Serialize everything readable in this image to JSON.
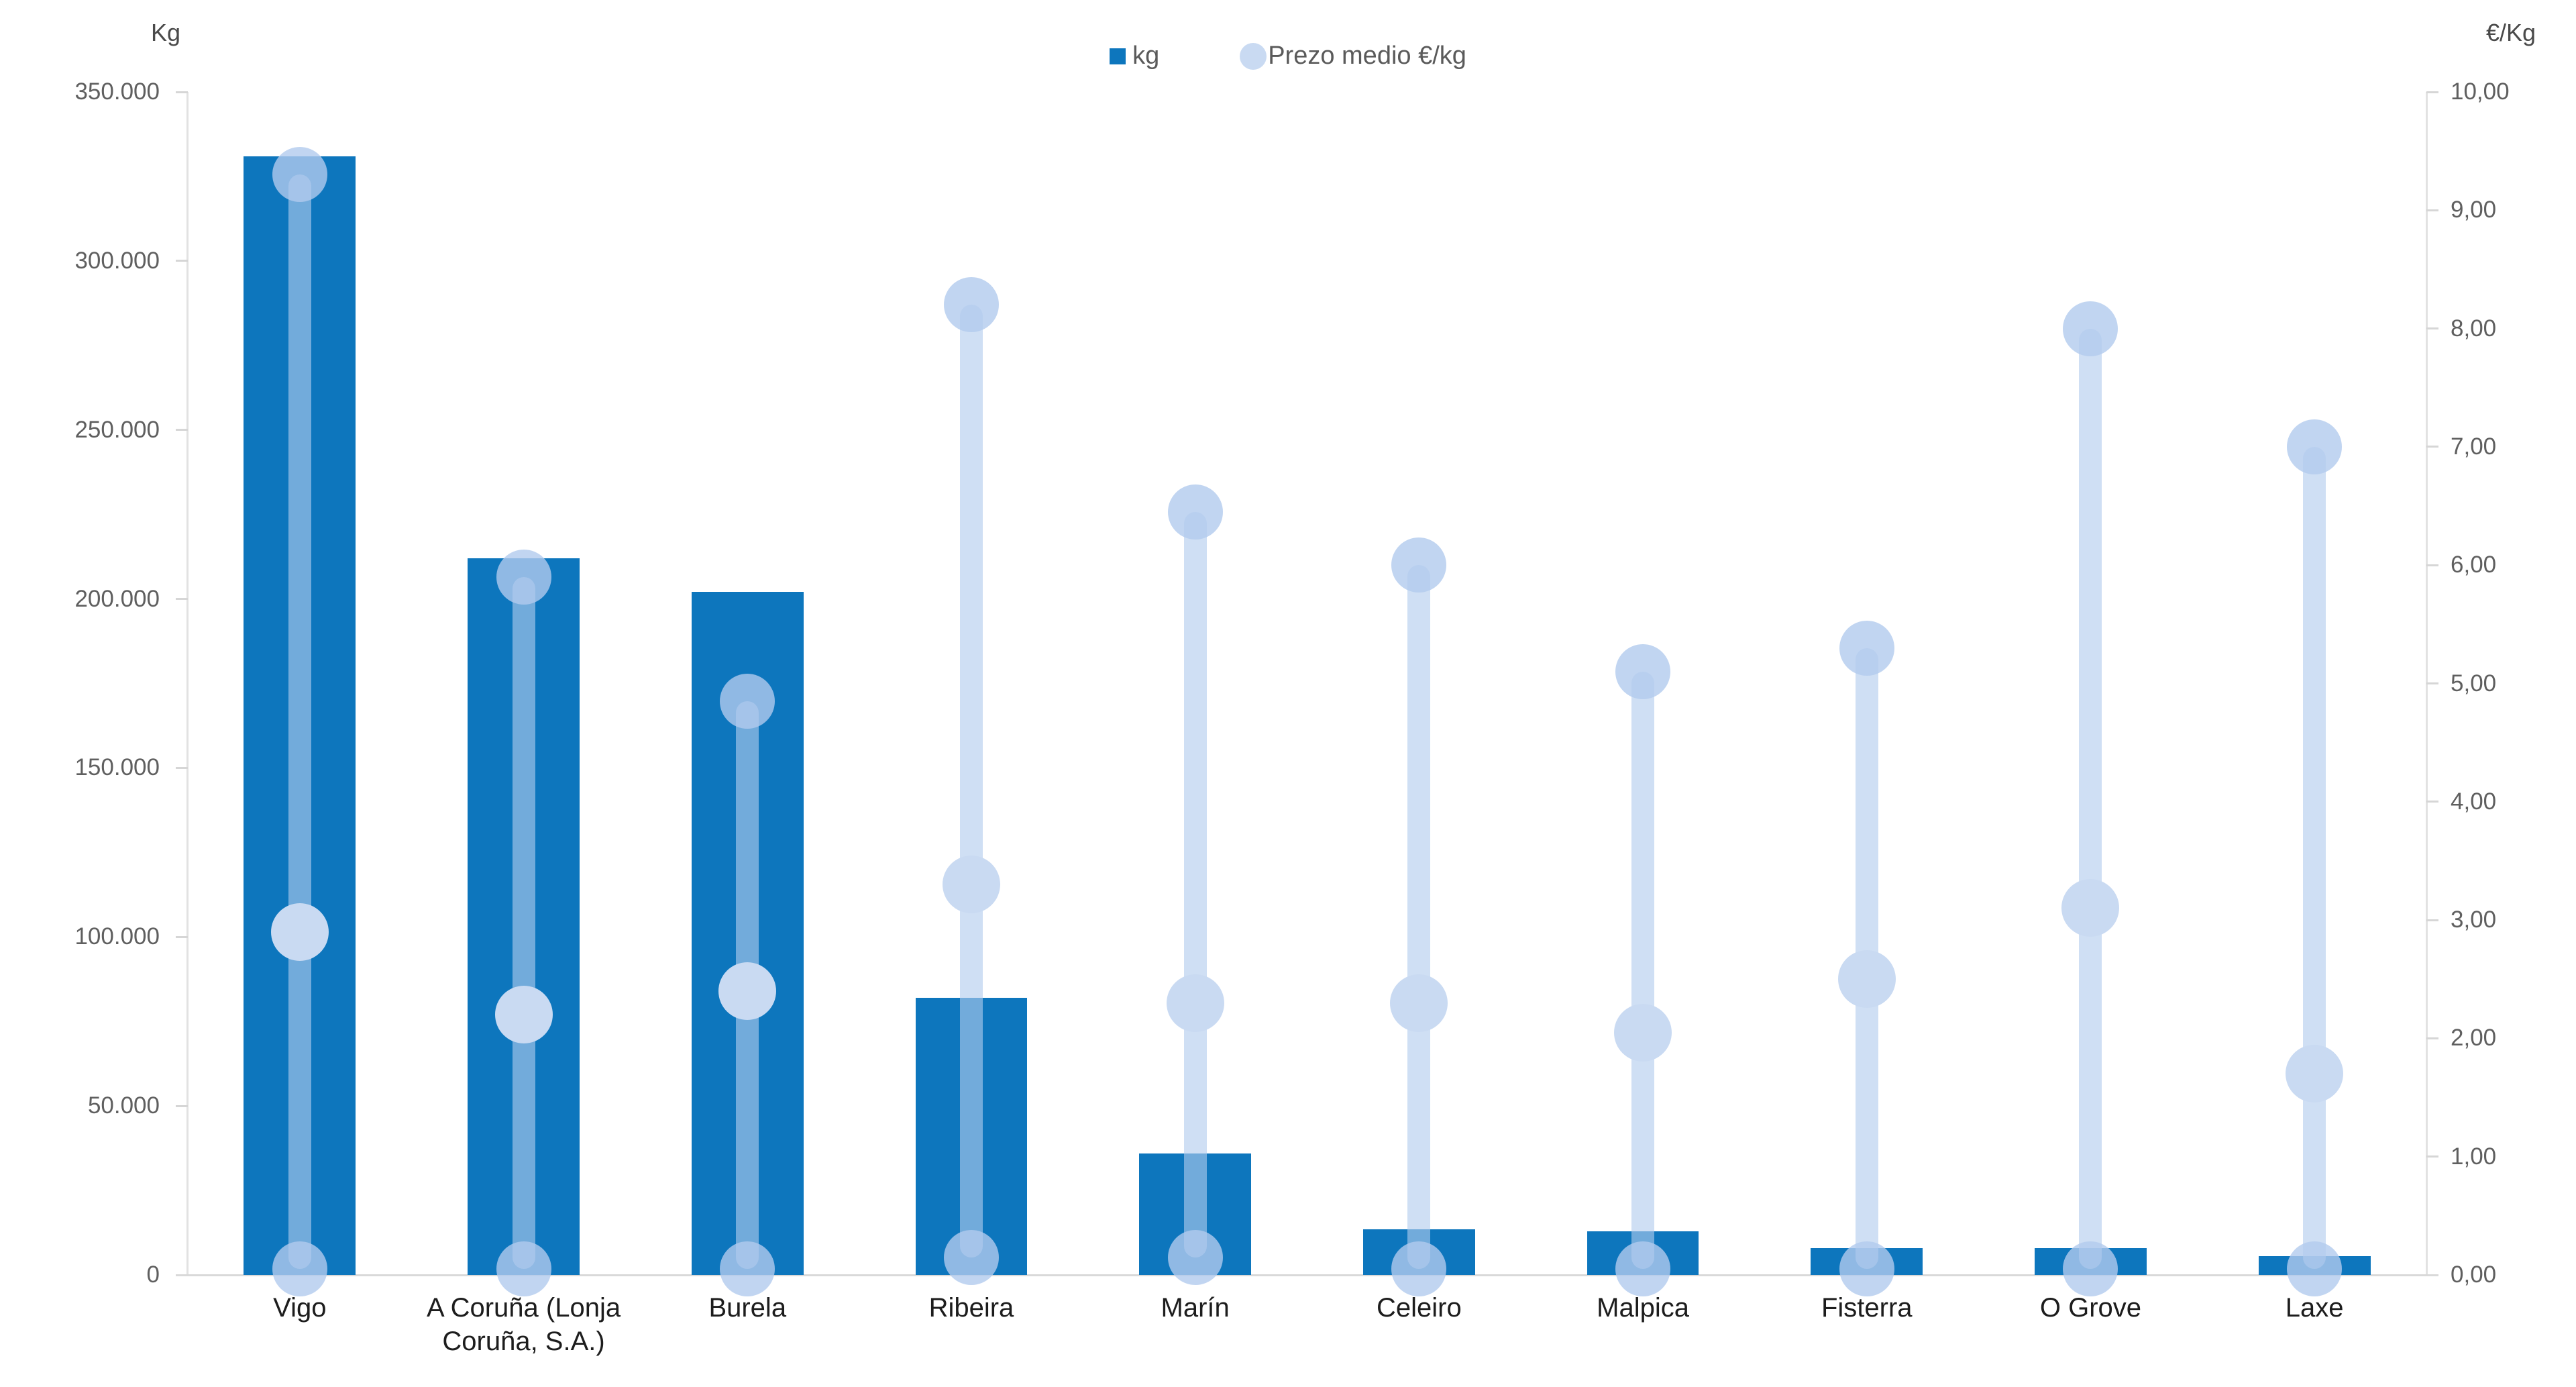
{
  "chart_data": {
    "type": "bar",
    "subtype": "dual-axis column + price range lollipop",
    "categories": [
      "Vigo",
      "A Coruña (Lonja Coruña, S.A.)",
      "Burela",
      "Ribeira",
      "Marín",
      "Celeiro",
      "Malpica",
      "Fisterra",
      "O Grove",
      "Laxe"
    ],
    "series": [
      {
        "name": "kg",
        "type": "bar",
        "axis": "left",
        "values": [
          331000,
          212000,
          202000,
          82000,
          36000,
          13500,
          13000,
          8000,
          8000,
          5500
        ]
      },
      {
        "name": "Prezo medio €/kg",
        "type": "lollipop-range",
        "axis": "right",
        "max": [
          9.3,
          5.9,
          4.85,
          8.2,
          6.45,
          6.0,
          5.1,
          5.3,
          8.0,
          7.0
        ],
        "avg": [
          2.9,
          2.2,
          2.4,
          3.3,
          2.3,
          2.3,
          2.05,
          2.5,
          3.1,
          1.7
        ],
        "min": [
          0.05,
          0.05,
          0.05,
          0.15,
          0.15,
          0.05,
          0.05,
          0.05,
          0.05,
          0.05
        ]
      }
    ],
    "left_axis": {
      "title": "Kg",
      "min": 0,
      "max": 350000,
      "step": 50000,
      "tick_labels": [
        "0",
        "50.000",
        "100.000",
        "150.000",
        "200.000",
        "250.000",
        "300.000",
        "350.000"
      ]
    },
    "right_axis": {
      "title": "€/Kg",
      "min": 0,
      "max": 10,
      "step": 1,
      "tick_labels": [
        "0,00",
        "1,00",
        "2,00",
        "3,00",
        "4,00",
        "5,00",
        "6,00",
        "7,00",
        "8,00",
        "9,00",
        "10,00"
      ]
    },
    "legend": [
      {
        "label": "kg",
        "marker": "square"
      },
      {
        "label": "Prezo medio €/kg",
        "marker": "circle"
      }
    ],
    "colors": {
      "bar": "#0d76bd",
      "range_line": "rgba(177,203,238,0.62)",
      "range_dot": "rgba(177,203,238,0.80)",
      "avg_dot": "#c9daf2",
      "legend_circle": "#c9daf2",
      "axis_line": "#e2e2e2",
      "tick_text": "#5f5f5f"
    },
    "layout_hints": {
      "legend_position": "top-center",
      "grid": "off",
      "background": "#ffffff"
    }
  }
}
